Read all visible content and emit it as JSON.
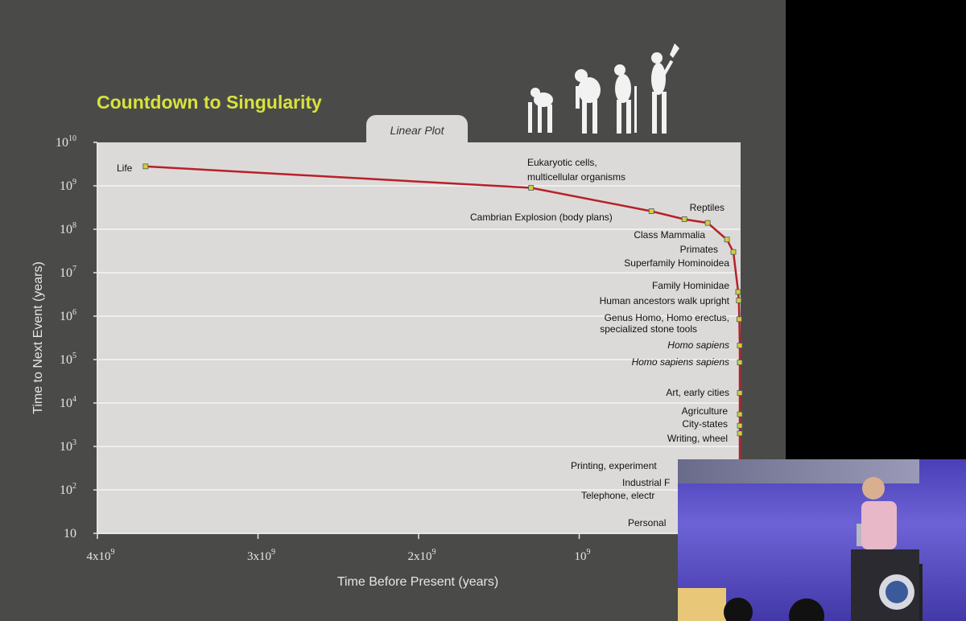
{
  "slide": {
    "title": "Countdown to Singularity",
    "tab_label": "Linear Plot"
  },
  "chart_data": {
    "type": "line",
    "title": "Countdown to Singularity",
    "subtitle": "Linear Plot",
    "xlabel": "Time Before Present (years)",
    "ylabel": "Time to Next Event (years)",
    "x_scale": "linear",
    "y_scale": "log",
    "xlim": [
      4000000000,
      0
    ],
    "ylim": [
      10,
      10000000000
    ],
    "x_ticks": [
      {
        "base": "4x10",
        "exp": "9",
        "value": 4000000000
      },
      {
        "base": "3x10",
        "exp": "9",
        "value": 3000000000
      },
      {
        "base": "2x10",
        "exp": "9",
        "value": 2000000000
      },
      {
        "base": "10",
        "exp": "9",
        "value": 1000000000
      }
    ],
    "y_ticks": [
      {
        "base": "10",
        "exp": "10",
        "value": 10000000000
      },
      {
        "base": "10",
        "exp": "9",
        "value": 1000000000
      },
      {
        "base": "10",
        "exp": "8",
        "value": 100000000
      },
      {
        "base": "10",
        "exp": "7",
        "value": 10000000
      },
      {
        "base": "10",
        "exp": "6",
        "value": 1000000
      },
      {
        "base": "10",
        "exp": "5",
        "value": 100000
      },
      {
        "base": "10",
        "exp": "4",
        "value": 10000
      },
      {
        "base": "10",
        "exp": "3",
        "value": 1000
      },
      {
        "base": "10",
        "exp": "2",
        "value": 100
      },
      {
        "base": "10",
        "exp": "",
        "value": 10
      }
    ],
    "grid": "horizontal",
    "line_color": "#b8202a",
    "marker_color": "#c9d23a",
    "points": [
      {
        "x": 3700000000,
        "y": 2800000000
      },
      {
        "x": 1300000000,
        "y": 900000000
      },
      {
        "x": 550000000,
        "y": 260000000
      },
      {
        "x": 345000000,
        "y": 170000000
      },
      {
        "x": 200000000,
        "y": 140000000
      },
      {
        "x": 80000000,
        "y": 58000000
      },
      {
        "x": 40000000,
        "y": 30000000
      },
      {
        "x": 10000000,
        "y": 3600000
      },
      {
        "x": 6000000,
        "y": 2300000
      },
      {
        "x": 3200000,
        "y": 850000
      },
      {
        "x": 200000,
        "y": 210000
      },
      {
        "x": 90000,
        "y": 86000
      },
      {
        "x": 19000,
        "y": 17000
      },
      {
        "x": 10000,
        "y": 5500
      },
      {
        "x": 5000,
        "y": 3000
      },
      {
        "x": 3000,
        "y": 2000
      },
      {
        "x": 0,
        "y": 11
      }
    ],
    "annotations": [
      {
        "text": "Life"
      },
      {
        "text": "Eukaryotic cells,"
      },
      {
        "text": "multicellular organisms"
      },
      {
        "text": "Cambrian Explosion (body plans)"
      },
      {
        "text": "Reptiles"
      },
      {
        "text": "Class Mammalia"
      },
      {
        "text": "Primates"
      },
      {
        "text": "Superfamily Hominoidea"
      },
      {
        "text": "Family Hominidae"
      },
      {
        "text": "Human ancestors walk upright"
      },
      {
        "text": "Genus Homo, Homo erectus,"
      },
      {
        "text": "specialized stone tools"
      },
      {
        "text": "Homo sapiens"
      },
      {
        "text": "Homo sapiens sapiens"
      },
      {
        "text": "Art, early cities"
      },
      {
        "text": "Agriculture"
      },
      {
        "text": "City-states"
      },
      {
        "text": "Writing, wheel"
      },
      {
        "text": "Printing, experiment"
      },
      {
        "text": "Industrial F"
      },
      {
        "text": "Telephone,  electr"
      },
      {
        "text": "Personal"
      }
    ]
  },
  "video_inset": {
    "present": true
  }
}
